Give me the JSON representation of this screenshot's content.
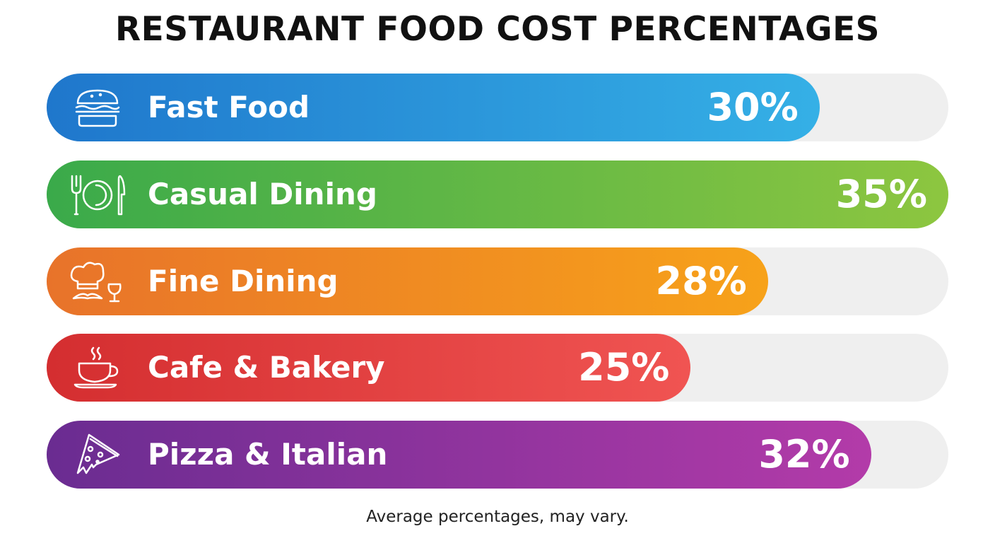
{
  "chart_data": {
    "type": "bar",
    "orientation": "horizontal",
    "title": "RESTAURANT FOOD COST PERCENTAGES",
    "categories": [
      "Fast Food",
      "Casual Dining",
      "Fine Dining",
      "Cafe & Bakery",
      "Pizza & Italian"
    ],
    "values": [
      30,
      35,
      28,
      25,
      32
    ],
    "value_labels": [
      "30%",
      "35%",
      "28%",
      "25%",
      "32%"
    ],
    "icons": [
      "burger-icon",
      "plate-cutlery-icon",
      "chef-hat-wine-icon",
      "coffee-cup-icon",
      "pizza-slice-icon"
    ],
    "colors": [
      [
        "#1f77cc",
        "#35b0e6"
      ],
      [
        "#3aaa4a",
        "#8dc640"
      ],
      [
        "#e8732a",
        "#f7a21a"
      ],
      [
        "#d42e30",
        "#f05452"
      ],
      [
        "#6a2c91",
        "#b33ba9"
      ]
    ],
    "track_color": "#efefef",
    "xlim": [
      0,
      35
    ],
    "grid": false,
    "legend": "none",
    "footnote": "Average percentages, may vary."
  }
}
